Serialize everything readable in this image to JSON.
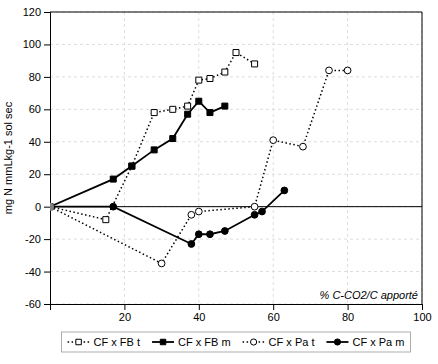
{
  "chart_data": {
    "type": "line",
    "ylabel": "mg N mmLkg-1 sol sec",
    "annotation": "% C-CO2/C apporté",
    "xlim": [
      0,
      100
    ],
    "ylim": [
      -60,
      120
    ],
    "xticks": [
      20,
      40,
      60,
      80,
      100
    ],
    "yticks": [
      -60,
      -40,
      -20,
      0,
      20,
      40,
      60,
      80,
      100,
      120
    ],
    "grid": true,
    "legend": "bottom",
    "series": [
      {
        "name": "CF x FB t",
        "color": "black",
        "line_style": "dotted",
        "marker": "square-open",
        "x": [
          0,
          15,
          22,
          28,
          33,
          37,
          40,
          43,
          47,
          50,
          55
        ],
        "values": [
          0,
          -8,
          25,
          58,
          60,
          62,
          78,
          79,
          83,
          95,
          88
        ]
      },
      {
        "name": "CF x FB m",
        "color": "black",
        "line_style": "solid",
        "marker": "square",
        "x": [
          0,
          17,
          22,
          28,
          33,
          37,
          40,
          43,
          47
        ],
        "values": [
          0,
          17,
          25,
          35,
          42,
          57,
          65,
          58,
          62
        ]
      },
      {
        "name": "CF x Pa t",
        "color": "black",
        "line_style": "dotted",
        "marker": "circle-open",
        "x": [
          0,
          30,
          38,
          40,
          55,
          60,
          68,
          75,
          80
        ],
        "values": [
          0,
          -35,
          -5,
          -3,
          0,
          41,
          37,
          84,
          84
        ]
      },
      {
        "name": "CF x Pa m",
        "color": "black",
        "line_style": "solid",
        "marker": "circle",
        "x": [
          0,
          17,
          38,
          40,
          43,
          47,
          55,
          57,
          63
        ],
        "values": [
          0,
          0,
          -23,
          -17,
          -17,
          -15,
          -5,
          -3,
          10
        ]
      }
    ],
    "reference_point": {
      "x": 0,
      "y": 0,
      "color": "gray"
    },
    "hline": {
      "y": 0,
      "color": "black"
    }
  }
}
